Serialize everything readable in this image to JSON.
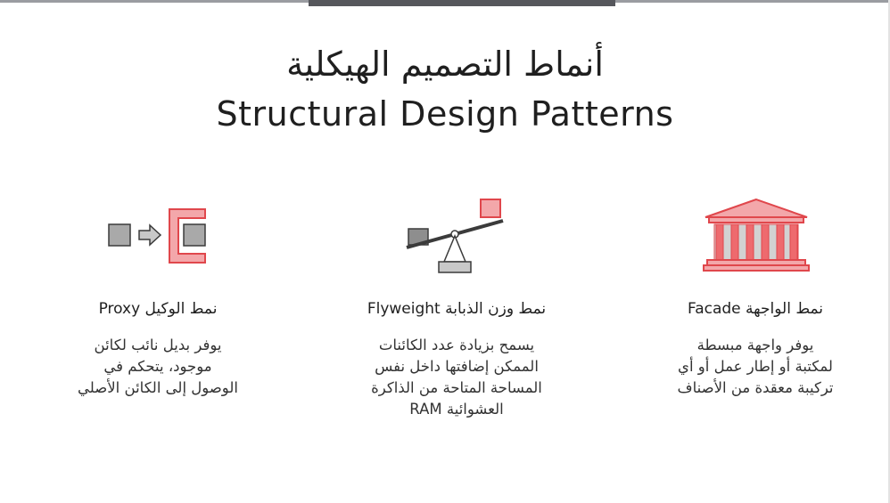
{
  "title_ar": "أنماط التصميم الهيكلية",
  "title_en": "Structural Design Patterns",
  "patterns": [
    {
      "title": "نمط الوكيل Proxy",
      "icon": "proxy-icon",
      "desc": [
        "يوفر بديل نائب لكائن",
        "موجود، يتحكم في",
        "الوصول إلى الكائن الأصلي"
      ]
    },
    {
      "title": "نمط وزن الذبابة Flyweight",
      "icon": "seesaw-icon",
      "desc": [
        "يسمح بزيادة عدد الكائنات",
        "الممكن إضافتها داخل نفس",
        "المساحة المتاحة من الذاكرة",
        "العشوائية RAM"
      ]
    },
    {
      "title": "نمط الواجهة Facade",
      "icon": "building-facade-icon",
      "desc": [
        "يوفر واجهة مبسطة",
        "لمكتبة أو إطار عمل أو أي",
        "تركيبة معقدة من الأصناف"
      ]
    }
  ],
  "colors": {
    "accent": "#e0474c",
    "accent_fill": "#f3a7aa",
    "gray": "#a3a3a3",
    "dark": "#3b3b3b"
  }
}
